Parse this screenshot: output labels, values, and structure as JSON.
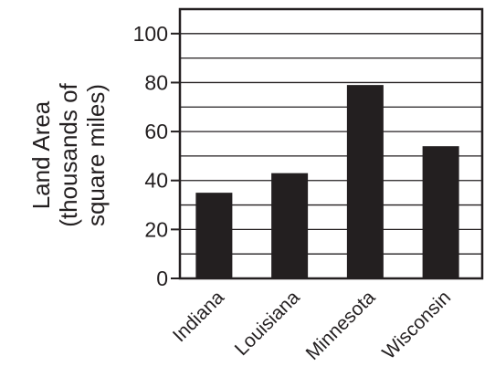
{
  "chart_data": {
    "type": "bar",
    "title": "",
    "xlabel": "",
    "ylabel": [
      "Land Area",
      "(thousands of",
      "square miles)"
    ],
    "categories": [
      "Indiana",
      "Louisiana",
      "Minnesota",
      "Wisconsin"
    ],
    "values": [
      35,
      43,
      79,
      54
    ],
    "ylim": [
      0,
      110
    ],
    "yticks": [
      0,
      20,
      40,
      60,
      80,
      100
    ],
    "gridlines": [
      10,
      20,
      30,
      40,
      50,
      60,
      70,
      80,
      90,
      100
    ],
    "grid": true,
    "legend": "none",
    "colors": {
      "bar": "#231f20",
      "axis": "#231f20",
      "grid": "#231f20",
      "background": "#ffffff"
    }
  }
}
